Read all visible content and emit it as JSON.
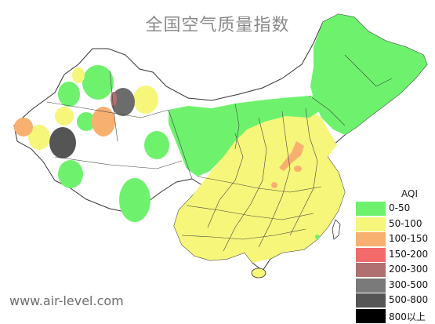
{
  "title": "全国空气质量指数",
  "watermark": "www.air-level.com",
  "legend": {
    "title": "AQI",
    "items": [
      {
        "label": "0-50",
        "color": "#6ef26e"
      },
      {
        "label": "50-100",
        "color": "#f6f67a"
      },
      {
        "label": "100-150",
        "color": "#f8b070"
      },
      {
        "label": "150-200",
        "color": "#f26a6a"
      },
      {
        "label": "200-300",
        "color": "#b07070"
      },
      {
        "label": "300-500",
        "color": "#7a7a7a"
      },
      {
        "label": "500-800",
        "color": "#555555"
      },
      {
        "label": "800以上",
        "color": "#000000"
      }
    ]
  },
  "colors": {
    "good": "#6ef26e",
    "moderate": "#f6f67a",
    "sensitive": "#f8b070",
    "unhealthy": "#f26a6a",
    "very_unhealthy": "#b07070",
    "hazardous": "#555555",
    "border": "#333333"
  }
}
